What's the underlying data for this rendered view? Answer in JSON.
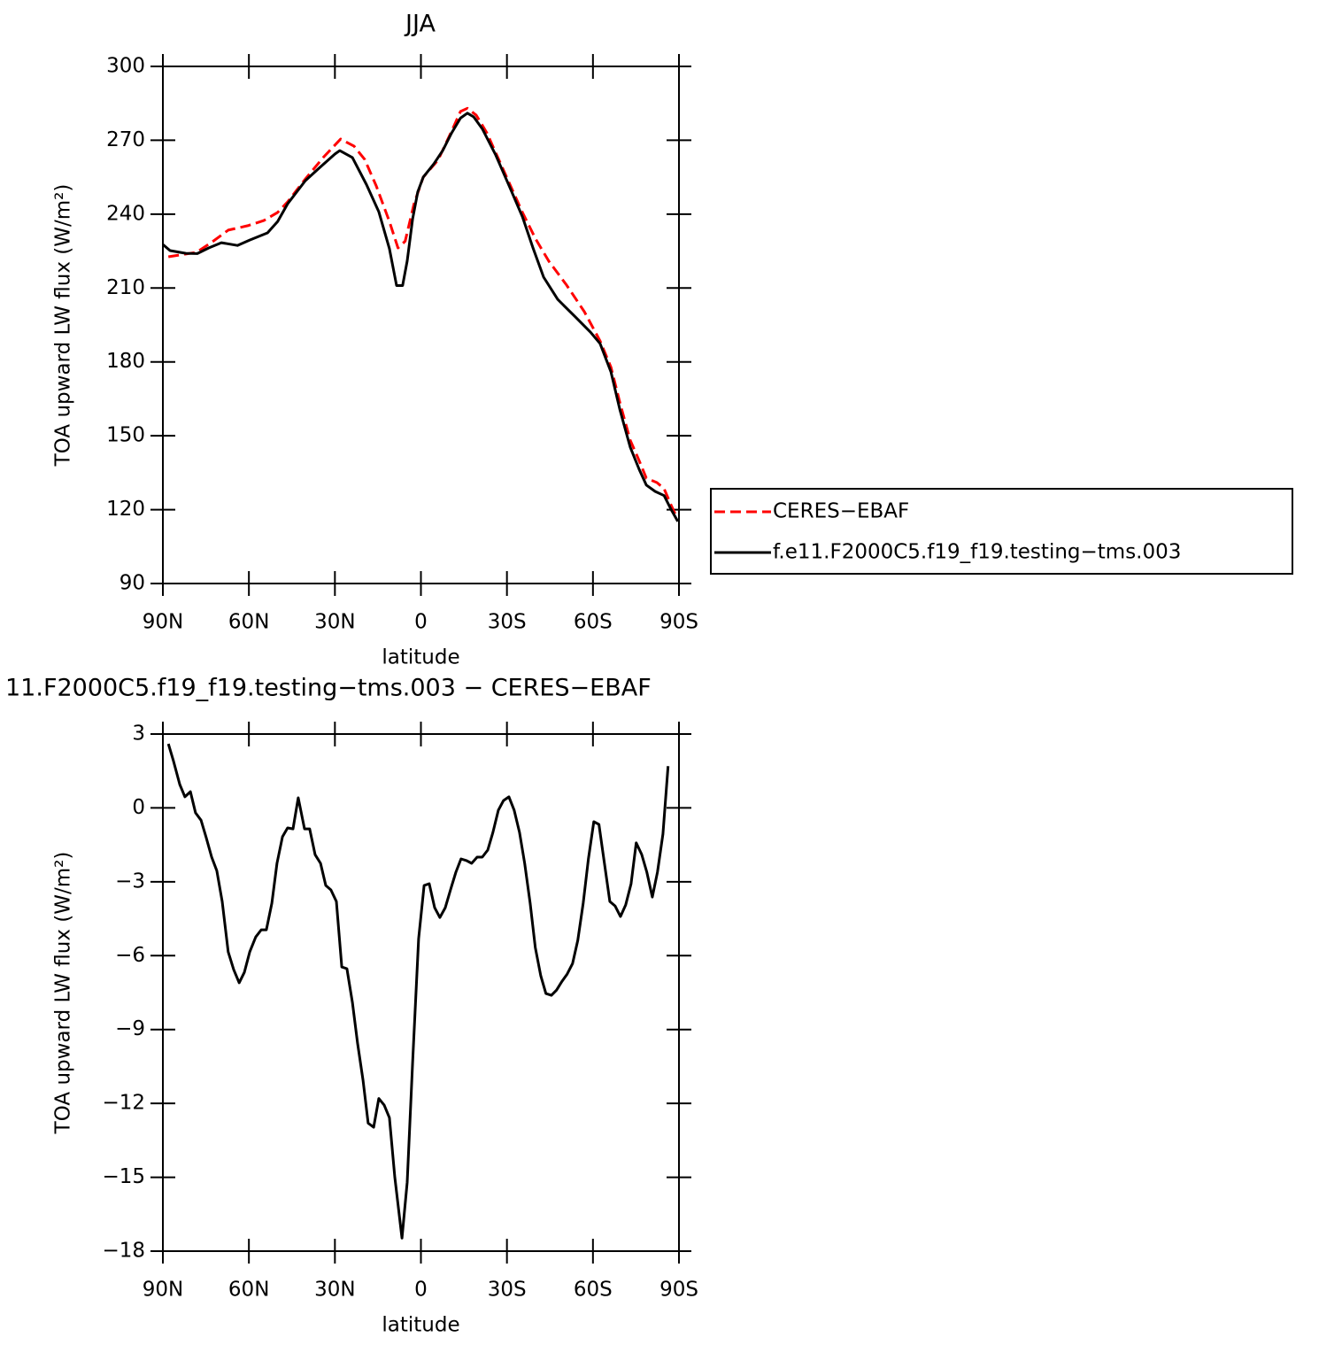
{
  "chart_data": [
    {
      "type": "line",
      "title": "JJA",
      "x_label": "latitude",
      "y_label": "TOA upward LW flux (W/m²)",
      "xlim": [
        90,
        -90
      ],
      "xticks": [
        {
          "value": 90,
          "label": "90N"
        },
        {
          "value": 60,
          "label": "60N"
        },
        {
          "value": 30,
          "label": "30N"
        },
        0,
        {
          "value": -30,
          "label": "30S"
        },
        {
          "value": -60,
          "label": "60S"
        },
        {
          "value": -90,
          "label": "90S"
        }
      ],
      "ylim": [
        90,
        300
      ],
      "yticks": [
        90,
        120,
        150,
        180,
        210,
        240,
        270,
        300
      ],
      "legend": "right",
      "series": [
        {
          "name": "CERES−EBAF",
          "color": "#ff0000",
          "dash": true,
          "x": [
            88.1,
            82,
            78.3,
            72.7,
            67.2,
            60.4,
            54.8,
            50,
            46.5,
            40.3,
            34.1,
            28,
            23.3,
            19.6,
            15.6,
            11,
            8,
            5.5,
            2.4,
            -0.8,
            -6,
            -10.7,
            -13.8,
            -16.2,
            -19.3,
            -23,
            -29.2,
            -35.4,
            -40,
            -44.6,
            -50.8,
            -57,
            -62.5,
            -66.3,
            -69.4,
            -73,
            -76.1,
            -78.6,
            -82.3,
            -84.8,
            -87.2,
            -89
          ],
          "values": [
            222.7,
            223.8,
            224.5,
            228.8,
            233.5,
            235.3,
            237.4,
            240.7,
            245,
            254.3,
            263,
            270.5,
            267.6,
            262.2,
            251.5,
            237,
            226.3,
            229,
            244.2,
            255,
            262,
            273.7,
            281.7,
            283,
            280.2,
            273,
            256.8,
            240.7,
            229.9,
            220.9,
            211.2,
            200.4,
            188.5,
            177.8,
            163.4,
            148.2,
            139.9,
            132.8,
            131,
            128.5,
            122,
            117.4
          ]
        },
        {
          "name": "f.e11.F2000C5.f19_f19.testing−tms.003",
          "color": "#000000",
          "dash": false,
          "x": [
            90,
            87.5,
            82,
            78,
            74,
            69.6,
            64,
            59.7,
            53.5,
            50,
            46.5,
            40.3,
            35.6,
            30,
            28.3,
            23.9,
            19,
            14.7,
            11,
            8.5,
            6.4,
            4.8,
            2.9,
            1.1,
            -0.8,
            -4.5,
            -7.6,
            -10.7,
            -13.8,
            -16.2,
            -18.4,
            -21.5,
            -26.1,
            -30.8,
            -35.4,
            -39.1,
            -42.8,
            -47.7,
            -53.9,
            -59.2,
            -62.5,
            -66.3,
            -69.4,
            -73,
            -76.1,
            -78.6,
            -81.7,
            -84.8,
            -87.2,
            -89.6
          ],
          "values": [
            227.7,
            225.2,
            224.1,
            224,
            226.3,
            228.4,
            227.3,
            229.5,
            232.4,
            237,
            244.2,
            253.6,
            258.6,
            264.4,
            265.8,
            263,
            252,
            241,
            226,
            211,
            211,
            221,
            238,
            249,
            255,
            260.4,
            265.8,
            273,
            279,
            281,
            279.5,
            274.5,
            264,
            251.4,
            238.9,
            226.3,
            214.4,
            205.4,
            198.2,
            192,
            187.4,
            175.9,
            160.5,
            145.4,
            136.4,
            130,
            127.4,
            125.7,
            120.2,
            115.2
          ]
        }
      ]
    },
    {
      "type": "line",
      "title": "11.F2000C5.f19_f19.testing−tms.003 − CERES−EBAF",
      "x_label": "latitude",
      "y_label": "TOA upward LW flux (W/m²)",
      "xlim": [
        90,
        -90
      ],
      "xticks": [
        {
          "value": 90,
          "label": "90N"
        },
        {
          "value": 60,
          "label": "60N"
        },
        {
          "value": 30,
          "label": "30N"
        },
        0,
        {
          "value": -30,
          "label": "30S"
        },
        {
          "value": -60,
          "label": "60S"
        },
        {
          "value": -90,
          "label": "90S"
        }
      ],
      "ylim": [
        -18,
        3
      ],
      "yticks": [
        {
          "value": -18,
          "label": "−18"
        },
        {
          "value": -15,
          "label": "−15"
        },
        {
          "value": -12,
          "label": "−12"
        },
        {
          "value": -9,
          "label": "−9"
        },
        {
          "value": -6,
          "label": "−6"
        },
        {
          "value": -3,
          "label": "−3"
        },
        0,
        3
      ],
      "series": [
        {
          "color": "#000000",
          "dash": false,
          "x": [
            88.1,
            86.3,
            84.1,
            82.3,
            80.4,
            78.6,
            76.7,
            74.9,
            73,
            71.2,
            69.3,
            67.2,
            65.3,
            63.4,
            61.6,
            59.7,
            57.6,
            55.7,
            53.9,
            52,
            50.2,
            48.3,
            46.5,
            44.6,
            42.8,
            40.6,
            38.8,
            36.9,
            35,
            33.2,
            31.4,
            29.5,
            27.6,
            25.8,
            23.9,
            22.1,
            20.2,
            18.4,
            16.5,
            14.7,
            12.8,
            11,
            9.1,
            6.6,
            4.8,
            2.9,
            0.8,
            -1.1,
            -2.9,
            -4.8,
            -6.6,
            -8.5,
            -10.3,
            -12.2,
            -14,
            -15.9,
            -17.7,
            -19.6,
            -21.4,
            -23.3,
            -25.1,
            -27,
            -28.8,
            -30.7,
            -32.5,
            -34.4,
            -36.2,
            -38.1,
            -39.9,
            -41.8,
            -43.6,
            -45.5,
            -47.3,
            -49.2,
            -51,
            -52.9,
            -54.7,
            -56.6,
            -58.4,
            -60.3,
            -62.1,
            -64,
            -65.9,
            -67.7,
            -69.6,
            -71.4,
            -73.3,
            -75.1,
            -77,
            -78.8,
            -80.7,
            -82.5,
            -84.4,
            -86.2
          ],
          "values": [
            2.6,
            1.9,
            0.95,
            0.45,
            0.66,
            -0.2,
            -0.5,
            -1.2,
            -2,
            -2.55,
            -3.8,
            -5.85,
            -6.57,
            -7.1,
            -6.68,
            -5.85,
            -5.24,
            -4.95,
            -4.95,
            -3.87,
            -2.25,
            -1.17,
            -0.81,
            -0.85,
            0.41,
            -0.85,
            -0.85,
            -1.9,
            -2.25,
            -3.15,
            -3.33,
            -3.8,
            -6.46,
            -6.53,
            -7.9,
            -9.55,
            -11.06,
            -12.8,
            -12.97,
            -11.8,
            -12.07,
            -12.58,
            -15,
            -17.47,
            -15.2,
            -10.35,
            -5.31,
            -3.15,
            -3.08,
            -4.05,
            -4.45,
            -4.05,
            -3.33,
            -2.61,
            -2.07,
            -2.14,
            -2.25,
            -2,
            -2,
            -1.71,
            -1,
            -0.09,
            0.3,
            0.45,
            -0.09,
            -1,
            -2.25,
            -3.87,
            -5.67,
            -6.82,
            -7.54,
            -7.61,
            -7.4,
            -7.04,
            -6.75,
            -6.32,
            -5.38,
            -3.87,
            -2.07,
            -0.56,
            -0.67,
            -2.25,
            -3.8,
            -3.98,
            -4.41,
            -3.94,
            -3.08,
            -1.42,
            -1.89,
            -2.61,
            -3.62,
            -2.61,
            -1.06,
            1.7
          ]
        }
      ]
    }
  ]
}
